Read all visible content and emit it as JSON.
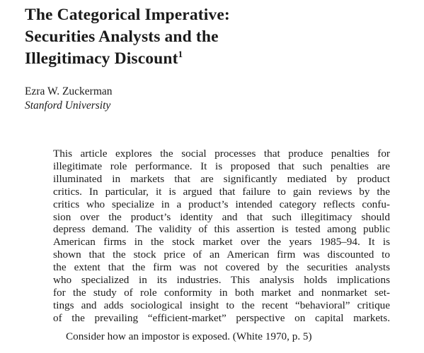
{
  "article": {
    "title_lines": [
      "The Categorical Imperative:",
      "Securities Analysts and the",
      "Illegitimacy Discount"
    ],
    "title_footnote": "1",
    "author": "Ezra W. Zuckerman",
    "affiliation": "Stanford University",
    "abstract_lines": [
      "This article explores the social processes that produce penalties for",
      "illegitimate role performance. It is proposed that such penalties are",
      "illuminated in markets that are significantly mediated by product",
      "critics. In particular, it is argued that failure to gain reviews by the",
      "critics who specialize in a product’s intended category reflects confu-",
      "sion over the product’s identity and that such illegitimacy should",
      "depress demand. The validity of this assertion is tested among public",
      "American firms in the stock market over the years 1985–94. It is",
      "shown that the stock price of an American firm was discounted to",
      "the extent that the firm was not covered by the securities analysts",
      "who specialized in its industries. This analysis holds implications",
      "for the study of role conformity in both market and nonmarket set-",
      "tings and adds sociological insight to the recent “behavioral” critique",
      "of the prevailing “efficient-market” perspective on capital markets."
    ],
    "epigraph": "Consider how an impostor is exposed. (White 1970, p. 5)"
  }
}
